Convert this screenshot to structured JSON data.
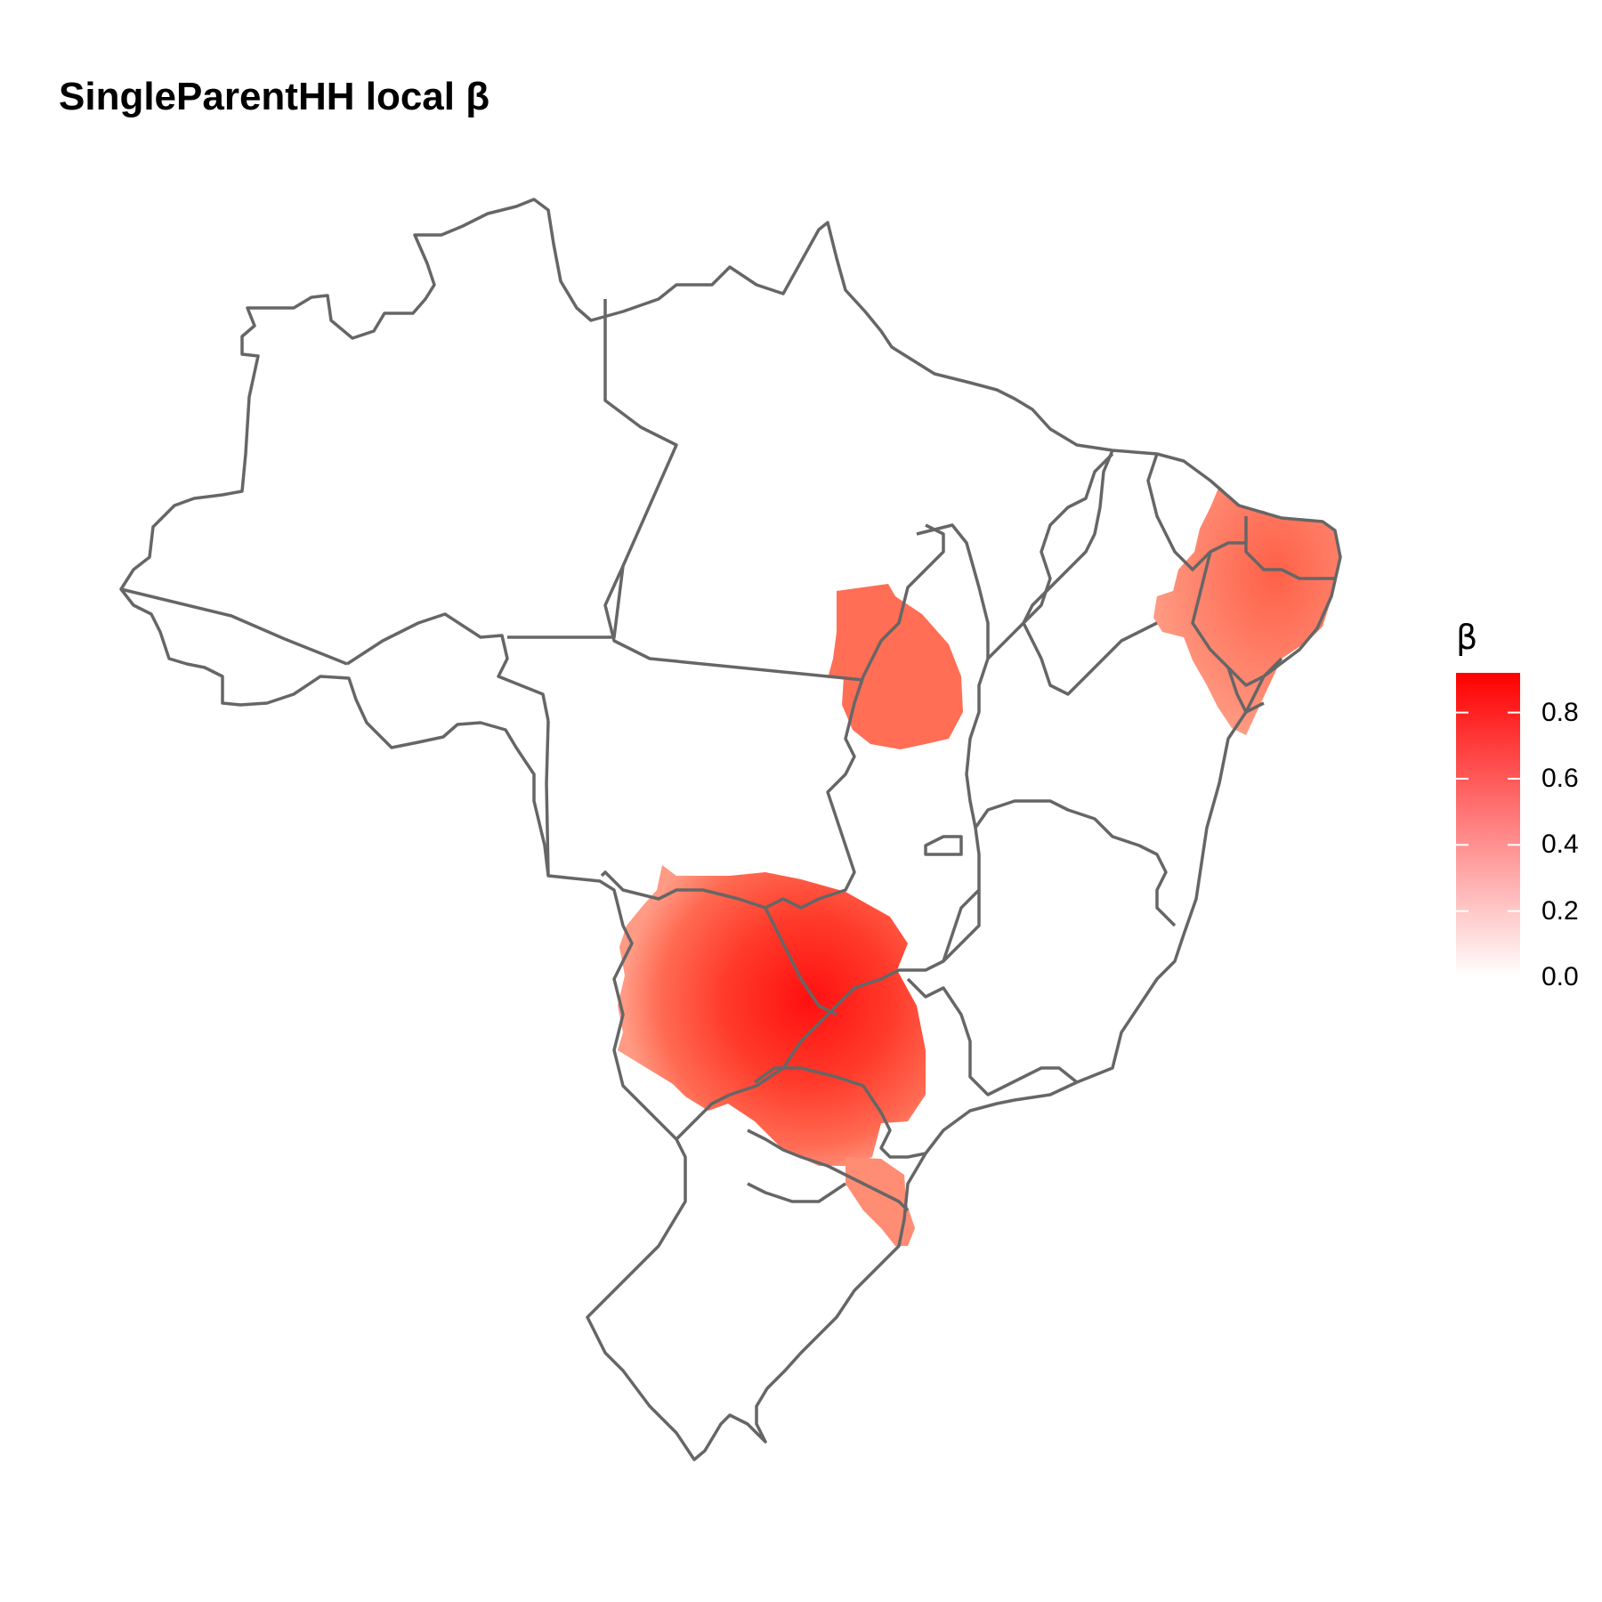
{
  "title": "SingleParentHH local β",
  "legend": {
    "title": "β",
    "ticks": [
      "0.0",
      "0.2",
      "0.4",
      "0.6",
      "0.8"
    ],
    "tick_values": [
      0.0,
      0.2,
      0.4,
      0.6,
      0.8
    ],
    "range": [
      0.0,
      0.92
    ],
    "colors": {
      "low": "#ffffff",
      "high": "#ff0000"
    }
  },
  "map": {
    "border_color": "#666666",
    "background": "#ffffff",
    "highlighted_regions": [
      {
        "name": "northeast cluster",
        "beta": 0.55
      },
      {
        "name": "central-north cluster",
        "beta": 0.55
      },
      {
        "name": "south-central cluster",
        "beta": 0.9
      },
      {
        "name": "south cluster",
        "beta": 0.6
      }
    ]
  }
}
